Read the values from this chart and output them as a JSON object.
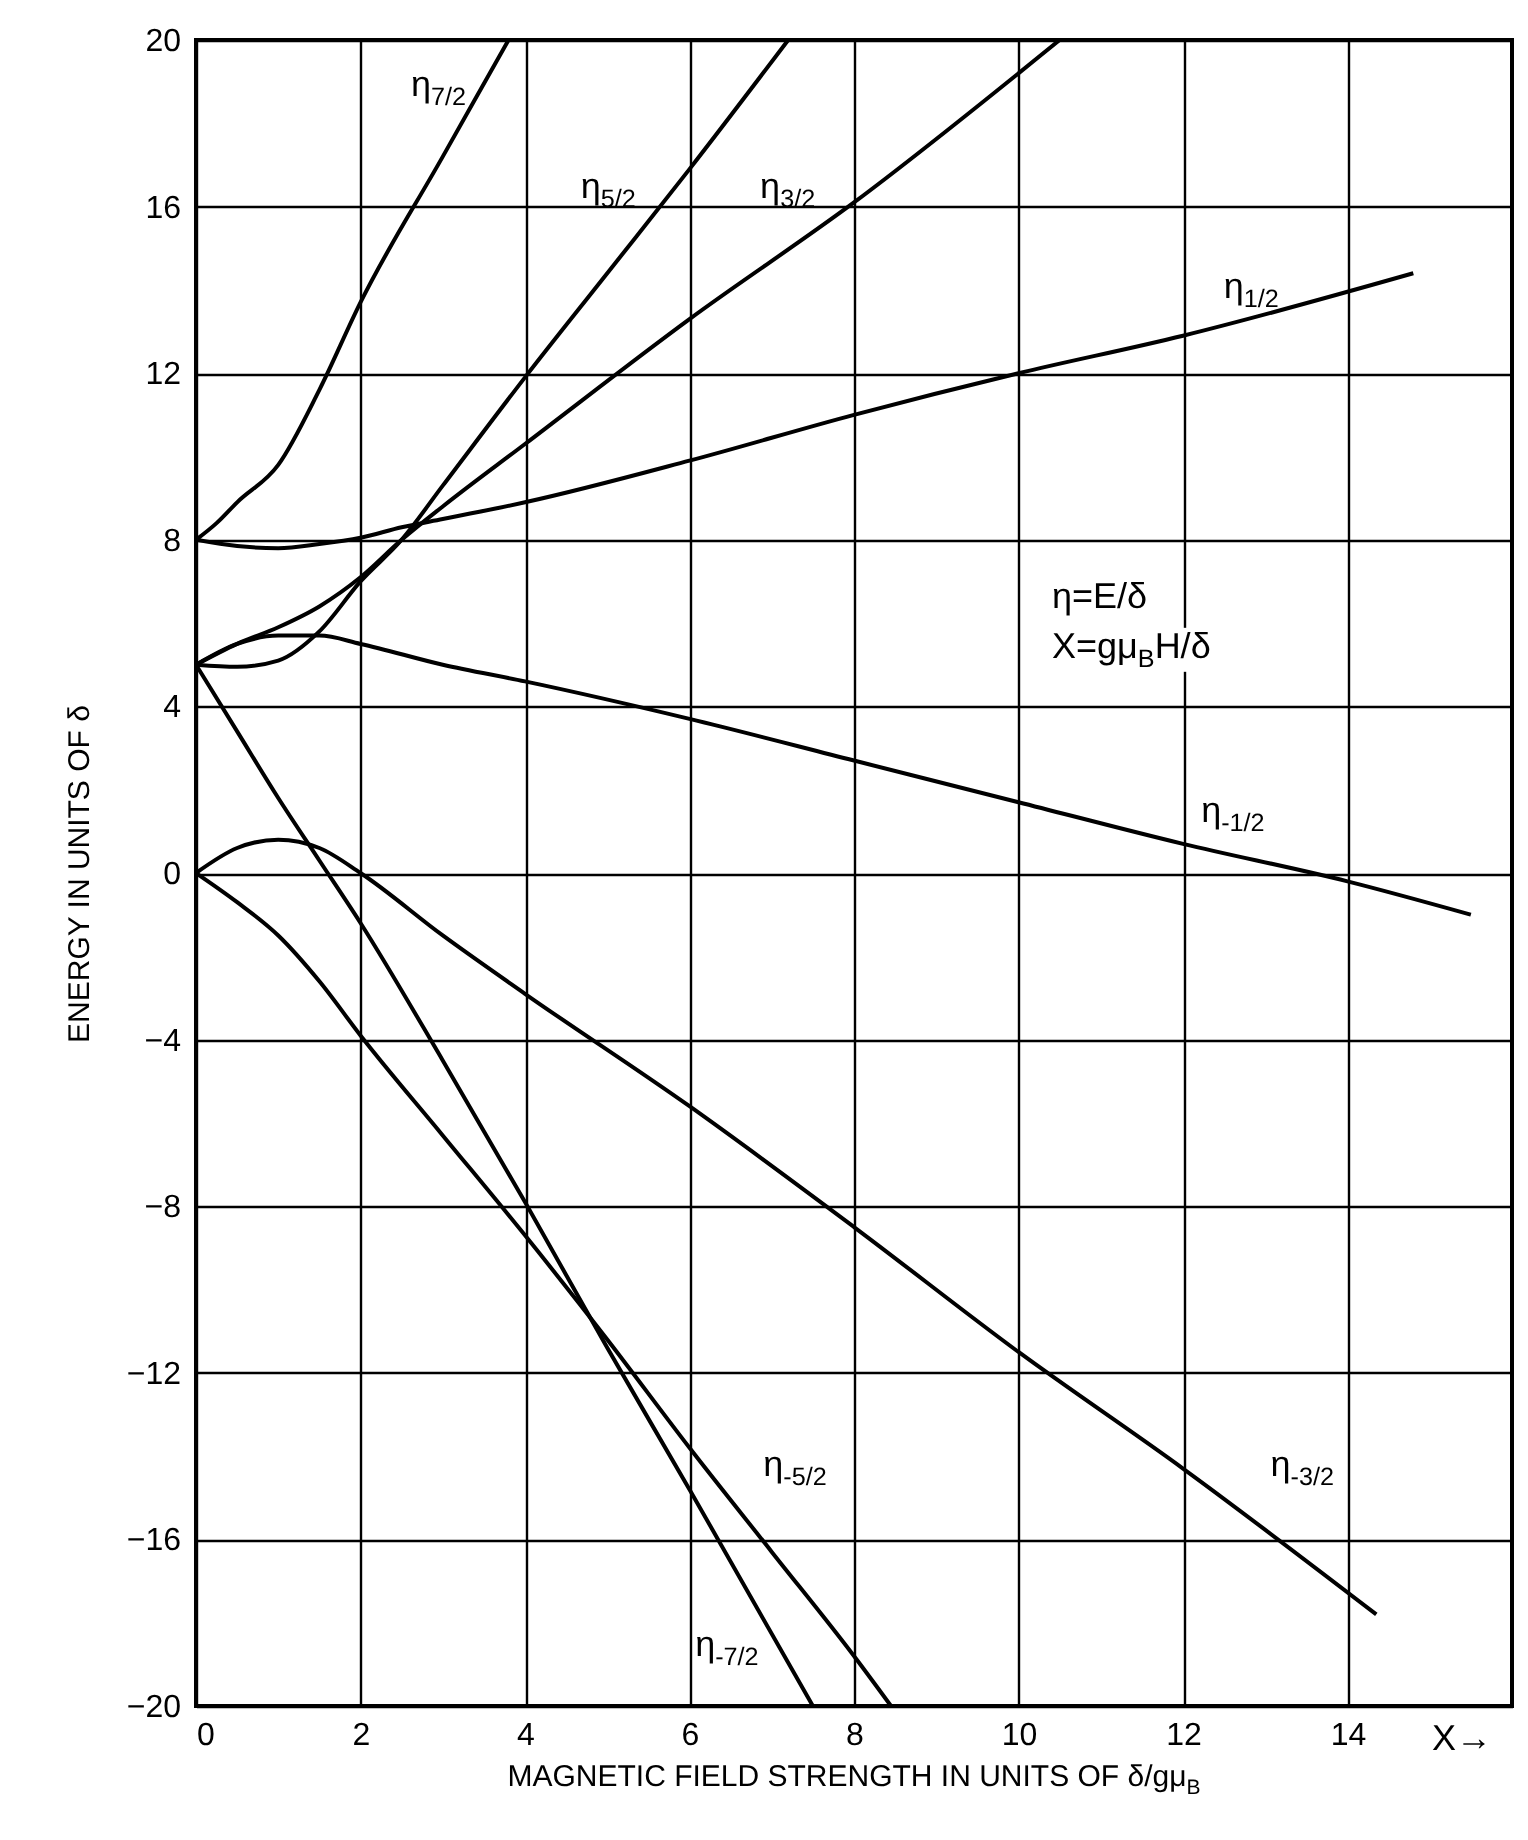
{
  "chart_data": {
    "type": "line",
    "xlabel": "MAGNETIC FIELD STRENGTH IN UNITS OF δ/gμ$_{B}$",
    "ylabel": "ENERGY IN UNITS OF δ",
    "xlim": [
      0,
      16
    ],
    "xticks": [
      0,
      2,
      4,
      6,
      8,
      10,
      12,
      14
    ],
    "ylim": [
      -20,
      20
    ],
    "yticks": [
      -20,
      -16,
      -12,
      -8,
      -4,
      0,
      4,
      8,
      12,
      16,
      20
    ],
    "grid": true,
    "series": [
      {
        "name": "η$_{7/2}$",
        "color": "#000000",
        "x": [
          0,
          0.25,
          0.5,
          1,
          1.5,
          2,
          3,
          3.8
        ],
        "values": [
          8,
          8.4,
          8.9,
          9.8,
          11.6,
          13.7,
          17.2,
          20
        ]
      },
      {
        "name": "η$_{5/2}$",
        "color": "#000000",
        "x": [
          0,
          0.5,
          1,
          1.5,
          2,
          2.5,
          3,
          4,
          5,
          6,
          7.2
        ],
        "values": [
          5,
          4.95,
          5.1,
          5.8,
          7.0,
          8.0,
          9.3,
          11.9,
          14.4,
          16.9,
          20
        ]
      },
      {
        "name": "η$_{3/2}$",
        "color": "#000000",
        "x": [
          0,
          0.5,
          1,
          1.5,
          2,
          2.5,
          3,
          4,
          6,
          8,
          10.5
        ],
        "values": [
          5,
          5.5,
          5.9,
          6.4,
          7.1,
          8.0,
          8.8,
          10.3,
          13.3,
          16.1,
          20
        ]
      },
      {
        "name": "η$_{1/2}$",
        "color": "#000000",
        "x": [
          0,
          0.5,
          1,
          1.5,
          2,
          2.5,
          3,
          4,
          6,
          8,
          10,
          12,
          14.8
        ],
        "values": [
          8,
          7.85,
          7.8,
          7.9,
          8.05,
          8.3,
          8.5,
          8.9,
          9.9,
          11.0,
          12.0,
          12.9,
          14.4
        ]
      },
      {
        "name": "η$_{-1/2}$",
        "color": "#000000",
        "x": [
          0,
          0.5,
          1,
          1.5,
          2,
          3,
          4,
          6,
          8,
          10,
          12,
          14,
          15.5
        ],
        "values": [
          5,
          5.5,
          5.7,
          5.7,
          5.5,
          5.0,
          4.6,
          3.7,
          2.7,
          1.7,
          0.7,
          -0.2,
          -1.0
        ]
      },
      {
        "name": "η$_{-3/2}$",
        "color": "#000000",
        "x": [
          0,
          0.5,
          1,
          1.5,
          2,
          3,
          4,
          6,
          8,
          10,
          12,
          14.35
        ],
        "values": [
          0,
          0.6,
          0.8,
          0.6,
          0,
          -1.5,
          -2.9,
          -5.6,
          -8.5,
          -11.5,
          -14.3,
          -17.8
        ]
      },
      {
        "name": "η$_{-5/2}$",
        "color": "#000000",
        "x": [
          0,
          0.5,
          1,
          1.5,
          2,
          3,
          4,
          5,
          6,
          7,
          8,
          8.45
        ],
        "values": [
          0,
          -0.7,
          -1.5,
          -2.6,
          -3.9,
          -6.3,
          -8.7,
          -11.2,
          -13.8,
          -16.3,
          -18.8,
          -20
        ]
      },
      {
        "name": "η$_{-7/2}$",
        "color": "#000000",
        "x": [
          0,
          0.5,
          1,
          1.5,
          2,
          3,
          4,
          5,
          6,
          7.5
        ],
        "values": [
          5,
          3.4,
          1.8,
          0.3,
          -1.2,
          -4.5,
          -7.9,
          -11.4,
          -14.8,
          -20
        ]
      }
    ],
    "annotations": [
      "η=E/δ",
      "X=gμ$_{B}$H/δ",
      "X→"
    ]
  }
}
